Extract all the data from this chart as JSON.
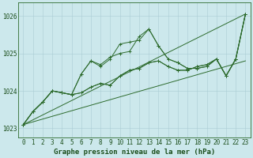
{
  "xlabel": "Graphe pression niveau de la mer (hPa)",
  "bg_color": "#cce8ec",
  "grid_color": "#aacdd4",
  "line_color": "#2d6b2d",
  "text_color": "#1a4d1a",
  "xlim_min": -0.5,
  "xlim_max": 23.5,
  "ylim_min": 1022.75,
  "ylim_max": 1026.35,
  "yticks": [
    1023,
    1024,
    1025,
    1026
  ],
  "xticks": [
    0,
    1,
    2,
    3,
    4,
    5,
    6,
    7,
    8,
    9,
    10,
    11,
    12,
    13,
    14,
    15,
    16,
    17,
    18,
    19,
    20,
    21,
    22,
    23
  ],
  "series": [
    [
      1023.1,
      1023.45,
      1023.7,
      1024.0,
      1023.95,
      1023.9,
      1023.95,
      1024.1,
      1024.2,
      1024.15,
      1024.4,
      1024.55,
      1024.6,
      1024.75,
      1024.8,
      1024.65,
      1024.55,
      1024.55,
      1024.65,
      1024.7,
      1024.85,
      1024.4,
      1024.85,
      1026.05
    ],
    [
      1023.1,
      1023.45,
      1023.7,
      1024.0,
      1023.95,
      1023.9,
      1024.45,
      1024.8,
      1024.65,
      1024.85,
      1025.25,
      1025.3,
      1025.35,
      1025.65,
      1025.2,
      1024.85,
      1024.75,
      1024.6,
      1024.6,
      1024.65,
      1024.85,
      1024.4,
      1024.85,
      1026.05
    ],
    [
      1023.1,
      1023.45,
      1023.7,
      1024.0,
      1023.95,
      1023.9,
      1024.45,
      1024.8,
      1024.7,
      1024.9,
      1025.0,
      1025.05,
      1025.45,
      1025.65,
      1025.2,
      1024.85,
      1024.75,
      1024.6,
      1024.6,
      1024.65,
      1024.85,
      1024.4,
      1024.85,
      1026.05
    ],
    [
      1023.1,
      1023.45,
      1023.7,
      1024.0,
      1023.95,
      1023.9,
      1023.95,
      1024.1,
      1024.2,
      1024.15,
      1024.4,
      1024.55,
      1024.6,
      1024.75,
      1024.8,
      1024.65,
      1024.55,
      1024.55,
      1024.65,
      1024.7,
      1024.85,
      1024.4,
      1024.85,
      1026.05
    ]
  ],
  "straight_lines": [
    {
      "x0": 0,
      "y0": 1023.1,
      "x1": 23,
      "y1": 1026.05
    },
    {
      "x0": 0,
      "y0": 1023.1,
      "x1": 23,
      "y1": 1024.8
    }
  ],
  "marker": "+",
  "markersize": 3.5,
  "markeredgewidth": 0.7,
  "linewidth": 0.7,
  "fontsize_label": 6.5,
  "fontsize_ticks": 5.5
}
